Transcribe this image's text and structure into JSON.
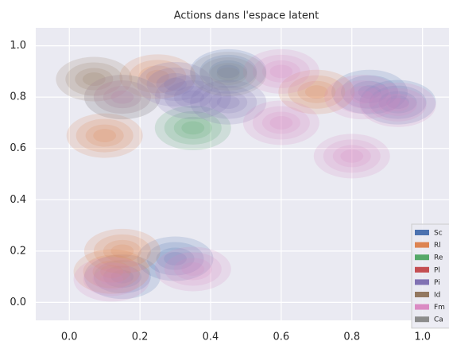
{
  "chart_data": {
    "type": "kde",
    "title": "Actions dans l'espace latent",
    "xlim": [
      -0.095,
      1.075
    ],
    "ylim": [
      -0.07,
      1.07
    ],
    "xticks": [
      {
        "value": 0,
        "label": "0.0"
      },
      0.2,
      0.4,
      0.6,
      0.8,
      {
        "value": 1,
        "label": "1.0"
      }
    ],
    "yticks": [
      {
        "value": 0,
        "label": "0.0"
      },
      0.2,
      0.4,
      0.6,
      0.8,
      {
        "value": 1,
        "label": "1.0"
      }
    ],
    "grid": true,
    "legend": "lower right",
    "series": [
      {
        "name": "Sc",
        "color": "#4c72b0",
        "x": [
          0.93,
          0.85,
          0.45,
          0.3,
          0.15
        ],
        "y": [
          0.78,
          0.82,
          0.9,
          0.17,
          0.1
        ]
      },
      {
        "name": "Rl",
        "color": "#dd8452",
        "x": [
          0.1,
          0.25,
          0.15,
          0.12,
          0.7
        ],
        "y": [
          0.65,
          0.88,
          0.2,
          0.12,
          0.82
        ]
      },
      {
        "name": "Re",
        "color": "#55a868",
        "x": [
          0.15,
          0.35
        ],
        "y": [
          0.8,
          0.68
        ]
      },
      {
        "name": "Pl",
        "color": "#c44e52",
        "x": [],
        "y": []
      },
      {
        "name": "Pi",
        "color": "#8172b3",
        "x": [
          0.35,
          0.45,
          0.3
        ],
        "y": [
          0.8,
          0.78,
          0.85
        ]
      },
      {
        "name": "Id",
        "color": "#937860",
        "x": [
          0.07
        ],
        "y": [
          0.87
        ]
      },
      {
        "name": "Fm",
        "color": "#da8bc3",
        "x": [
          0.8,
          0.93,
          0.83,
          0.6,
          0.15,
          0.35,
          0.12,
          0.6
        ],
        "y": [
          0.57,
          0.77,
          0.8,
          0.7,
          0.8,
          0.13,
          0.09,
          0.9
        ]
      },
      {
        "name": "Ca",
        "color": "#8c8c8c",
        "x": [
          0.45
        ],
        "y": [
          0.89
        ]
      }
    ]
  }
}
